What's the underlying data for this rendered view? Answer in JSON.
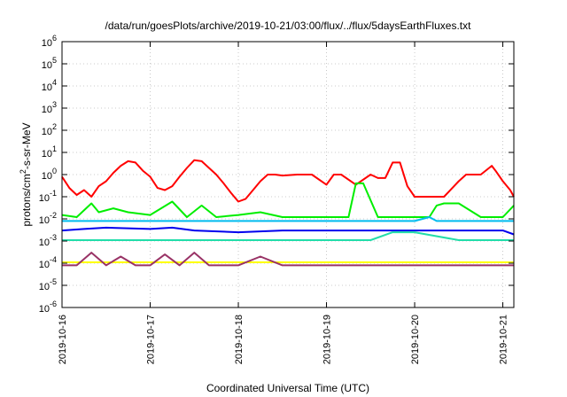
{
  "chart_data": {
    "type": "line",
    "title": "/data/run/goesPlots/archive/2019-10-21/03:00/flux/../flux/5daysEarthFluxes.txt",
    "xlabel": "Coordinated Universal Time (UTC)",
    "ylabel_base": "protons/cm",
    "ylabel_sup": "2",
    "ylabel_rest": "-s-sr-MeV",
    "y_scale": "log",
    "ylim": [
      1e-06,
      1000000.0
    ],
    "xlim": [
      "2019-10-16T00:00",
      "2019-10-21T03:00"
    ],
    "grid": true,
    "legend": "none",
    "y_ticks": [
      {
        "base": "10",
        "exp": "-6",
        "value": 1e-06
      },
      {
        "base": "10",
        "exp": "-5",
        "value": 1e-05
      },
      {
        "base": "10",
        "exp": "-4",
        "value": 0.0001
      },
      {
        "base": "10",
        "exp": "-3",
        "value": 0.001
      },
      {
        "base": "10",
        "exp": "-2",
        "value": 0.01
      },
      {
        "base": "10",
        "exp": "-1",
        "value": 0.1
      },
      {
        "base": "10",
        "exp": "0",
        "value": 1
      },
      {
        "base": "10",
        "exp": "1",
        "value": 10.0
      },
      {
        "base": "10",
        "exp": "2",
        "value": 100.0
      },
      {
        "base": "10",
        "exp": "3",
        "value": 1000.0
      },
      {
        "base": "10",
        "exp": "4",
        "value": 10000.0
      },
      {
        "base": "10",
        "exp": "5",
        "value": 100000.0
      },
      {
        "base": "10",
        "exp": "6",
        "value": 1000000.0
      }
    ],
    "x_ticks": [
      "2019-10-16",
      "2019-10-17",
      "2019-10-18",
      "2019-10-19",
      "2019-10-20",
      "2019-10-21"
    ],
    "series": [
      {
        "color": "#ff0000",
        "x": [
          "2019-10-16T00:00",
          "2019-10-16T02:00",
          "2019-10-16T04:00",
          "2019-10-16T06:00",
          "2019-10-16T08:00",
          "2019-10-16T10:00",
          "2019-10-16T12:00",
          "2019-10-16T14:00",
          "2019-10-16T16:00",
          "2019-10-16T18:00",
          "2019-10-16T20:00",
          "2019-10-16T22:00",
          "2019-10-17T00:00",
          "2019-10-17T02:00",
          "2019-10-17T04:00",
          "2019-10-17T06:00",
          "2019-10-17T08:00",
          "2019-10-17T10:00",
          "2019-10-17T12:00",
          "2019-10-17T14:00",
          "2019-10-17T16:00",
          "2019-10-17T18:00",
          "2019-10-17T20:00",
          "2019-10-17T22:00",
          "2019-10-18T00:00",
          "2019-10-18T02:00",
          "2019-10-18T04:00",
          "2019-10-18T06:00",
          "2019-10-18T08:00",
          "2019-10-18T10:00",
          "2019-10-18T12:00",
          "2019-10-18T16:00",
          "2019-10-18T20:00",
          "2019-10-19T00:00",
          "2019-10-19T02:00",
          "2019-10-19T04:00",
          "2019-10-19T08:00",
          "2019-10-19T12:00",
          "2019-10-19T14:00",
          "2019-10-19T16:00",
          "2019-10-19T18:00",
          "2019-10-19T20:00",
          "2019-10-19T22:00",
          "2019-10-20T00:00",
          "2019-10-20T02:00",
          "2019-10-20T04:00",
          "2019-10-20T08:00",
          "2019-10-20T12:00",
          "2019-10-20T14:00",
          "2019-10-20T18:00",
          "2019-10-20T21:00",
          "2019-10-20T22:00",
          "2019-10-21T00:00",
          "2019-10-21T02:00",
          "2019-10-21T03:00"
        ],
        "y": [
          0.8,
          0.25,
          0.12,
          0.2,
          0.1,
          0.3,
          0.5,
          1.2,
          2.5,
          4.0,
          3.5,
          1.5,
          0.8,
          0.25,
          0.2,
          0.3,
          0.8,
          2.0,
          4.5,
          4.0,
          2.0,
          1.0,
          0.4,
          0.15,
          0.06,
          0.08,
          0.2,
          0.5,
          1.0,
          1.0,
          0.9,
          1.0,
          1.0,
          0.35,
          1.0,
          1.0,
          0.35,
          1.0,
          0.7,
          0.7,
          3.5,
          3.5,
          0.3,
          0.1,
          0.1,
          0.1,
          0.1,
          0.5,
          1.0,
          1.0,
          2.5,
          1.5,
          0.5,
          0.2,
          0.1
        ]
      },
      {
        "color": "#00ee00",
        "x": [
          "2019-10-16T00:00",
          "2019-10-16T04:00",
          "2019-10-16T08:00",
          "2019-10-16T10:00",
          "2019-10-16T14:00",
          "2019-10-16T18:00",
          "2019-10-17T00:00",
          "2019-10-17T06:00",
          "2019-10-17T10:00",
          "2019-10-17T14:00",
          "2019-10-17T18:00",
          "2019-10-18T00:00",
          "2019-10-18T06:00",
          "2019-10-18T12:00",
          "2019-10-18T18:00",
          "2019-10-19T00:00",
          "2019-10-19T06:00",
          "2019-10-19T08:00",
          "2019-10-19T10:00",
          "2019-10-19T14:00",
          "2019-10-19T18:00",
          "2019-10-20T00:00",
          "2019-10-20T04:00",
          "2019-10-20T06:00",
          "2019-10-20T08:00",
          "2019-10-20T12:00",
          "2019-10-20T18:00",
          "2019-10-21T00:00",
          "2019-10-21T03:00"
        ],
        "y": [
          0.015,
          0.012,
          0.05,
          0.02,
          0.03,
          0.02,
          0.015,
          0.06,
          0.012,
          0.04,
          0.012,
          0.015,
          0.02,
          0.012,
          0.012,
          0.012,
          0.012,
          0.4,
          0.4,
          0.012,
          0.012,
          0.012,
          0.012,
          0.04,
          0.05,
          0.05,
          0.012,
          0.012,
          0.04
        ]
      },
      {
        "color": "#00bbee",
        "x": [
          "2019-10-16T00:00",
          "2019-10-16T12:00",
          "2019-10-17T00:00",
          "2019-10-17T12:00",
          "2019-10-18T00:00",
          "2019-10-18T12:00",
          "2019-10-19T00:00",
          "2019-10-19T12:00",
          "2019-10-20T00:00",
          "2019-10-20T04:00",
          "2019-10-20T06:00",
          "2019-10-20T12:00",
          "2019-10-21T00:00",
          "2019-10-21T03:00"
        ],
        "y": [
          0.008,
          0.008,
          0.008,
          0.008,
          0.008,
          0.008,
          0.008,
          0.008,
          0.008,
          0.012,
          0.008,
          0.008,
          0.008,
          0.008
        ]
      },
      {
        "color": "#0000ee",
        "x": [
          "2019-10-16T00:00",
          "2019-10-16T06:00",
          "2019-10-16T12:00",
          "2019-10-17T00:00",
          "2019-10-17T06:00",
          "2019-10-17T12:00",
          "2019-10-18T00:00",
          "2019-10-18T12:00",
          "2019-10-19T00:00",
          "2019-10-19T12:00",
          "2019-10-20T00:00",
          "2019-10-20T12:00",
          "2019-10-21T00:00",
          "2019-10-21T03:00"
        ],
        "y": [
          0.003,
          0.0035,
          0.004,
          0.0035,
          0.004,
          0.003,
          0.0025,
          0.003,
          0.003,
          0.003,
          0.003,
          0.003,
          0.003,
          0.002
        ]
      },
      {
        "color": "#22ddaa",
        "x": [
          "2019-10-16T00:00",
          "2019-10-16T12:00",
          "2019-10-17T00:00",
          "2019-10-17T12:00",
          "2019-10-18T00:00",
          "2019-10-18T12:00",
          "2019-10-19T00:00",
          "2019-10-19T12:00",
          "2019-10-19T18:00",
          "2019-10-20T00:00",
          "2019-10-20T12:00",
          "2019-10-21T00:00",
          "2019-10-21T03:00"
        ],
        "y": [
          0.0011,
          0.0011,
          0.0011,
          0.0011,
          0.0011,
          0.0011,
          0.0011,
          0.0011,
          0.0025,
          0.0025,
          0.0011,
          0.0011,
          0.0011
        ]
      },
      {
        "color": "#ffff00",
        "x": [
          "2019-10-16T00:00",
          "2019-10-16T12:00",
          "2019-10-17T00:00",
          "2019-10-17T12:00",
          "2019-10-18T00:00",
          "2019-10-18T12:00",
          "2019-10-19T00:00",
          "2019-10-19T12:00",
          "2019-10-20T00:00",
          "2019-10-20T12:00",
          "2019-10-21T00:00",
          "2019-10-21T03:00"
        ],
        "y": [
          0.00011,
          0.00011,
          0.00011,
          0.00011,
          0.00011,
          0.00011,
          0.00011,
          0.00011,
          0.00011,
          0.00011,
          0.00011,
          0.00011
        ]
      },
      {
        "color": "#993366",
        "x": [
          "2019-10-16T00:00",
          "2019-10-16T04:00",
          "2019-10-16T08:00",
          "2019-10-16T12:00",
          "2019-10-16T16:00",
          "2019-10-16T20:00",
          "2019-10-17T00:00",
          "2019-10-17T04:00",
          "2019-10-17T08:00",
          "2019-10-17T12:00",
          "2019-10-17T16:00",
          "2019-10-17T20:00",
          "2019-10-18T00:00",
          "2019-10-18T06:00",
          "2019-10-18T12:00",
          "2019-10-18T18:00",
          "2019-10-19T00:00",
          "2019-10-19T06:00",
          "2019-10-19T12:00",
          "2019-10-19T18:00",
          "2019-10-20T00:00",
          "2019-10-20T12:00",
          "2019-10-21T00:00",
          "2019-10-21T03:00"
        ],
        "y": [
          8e-05,
          8e-05,
          0.0003,
          8e-05,
          0.0002,
          8e-05,
          8e-05,
          0.00025,
          8e-05,
          0.0003,
          8e-05,
          8e-05,
          8e-05,
          0.0002,
          8e-05,
          8e-05,
          8e-05,
          8e-05,
          8e-05,
          8e-05,
          8e-05,
          8e-05,
          8e-05,
          8e-05
        ]
      }
    ]
  }
}
